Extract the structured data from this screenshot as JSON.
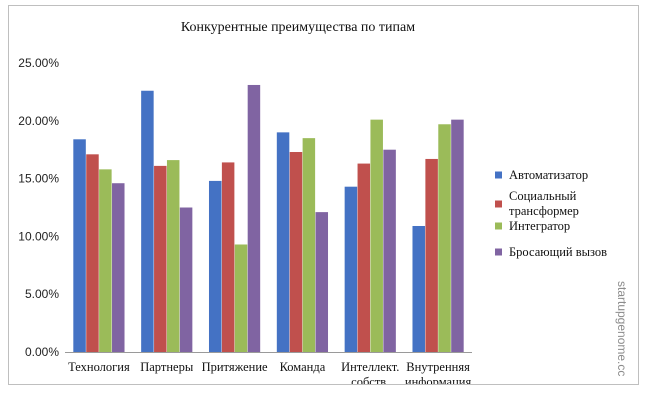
{
  "chart_data": {
    "type": "bar",
    "title": "Конкурентные преимущества по типам",
    "xlabel": "",
    "ylabel": "",
    "categories": [
      [
        "Технология"
      ],
      [
        "Партнеры"
      ],
      [
        "Притяжение"
      ],
      [
        "Команда"
      ],
      [
        "Интеллект.",
        "собств."
      ],
      [
        "Внутренняя",
        "информация"
      ]
    ],
    "series": [
      {
        "name": [
          "Автоматизатор"
        ],
        "color": "#4472c4",
        "values": [
          0.184,
          0.226,
          0.148,
          0.19,
          0.143,
          0.109
        ]
      },
      {
        "name": [
          "Социальный",
          "трансформер"
        ],
        "color": "#c0504d",
        "values": [
          0.171,
          0.161,
          0.164,
          0.173,
          0.163,
          0.167
        ]
      },
      {
        "name": [
          "Интегратор"
        ],
        "color": "#9bbb59",
        "values": [
          0.158,
          0.166,
          0.093,
          0.185,
          0.201,
          0.197
        ]
      },
      {
        "name": [
          "Бросающий вызов"
        ],
        "color": "#8064a2",
        "values": [
          0.146,
          0.125,
          0.231,
          0.121,
          0.175,
          0.201
        ]
      }
    ],
    "ylim": [
      0,
      0.25
    ],
    "yticks": [
      "0.00%",
      "5.00%",
      "10.00%",
      "15.00%",
      "20.00%",
      "25.00%"
    ],
    "grid": false,
    "legend": "right"
  },
  "watermark": "startupgenome.cc"
}
